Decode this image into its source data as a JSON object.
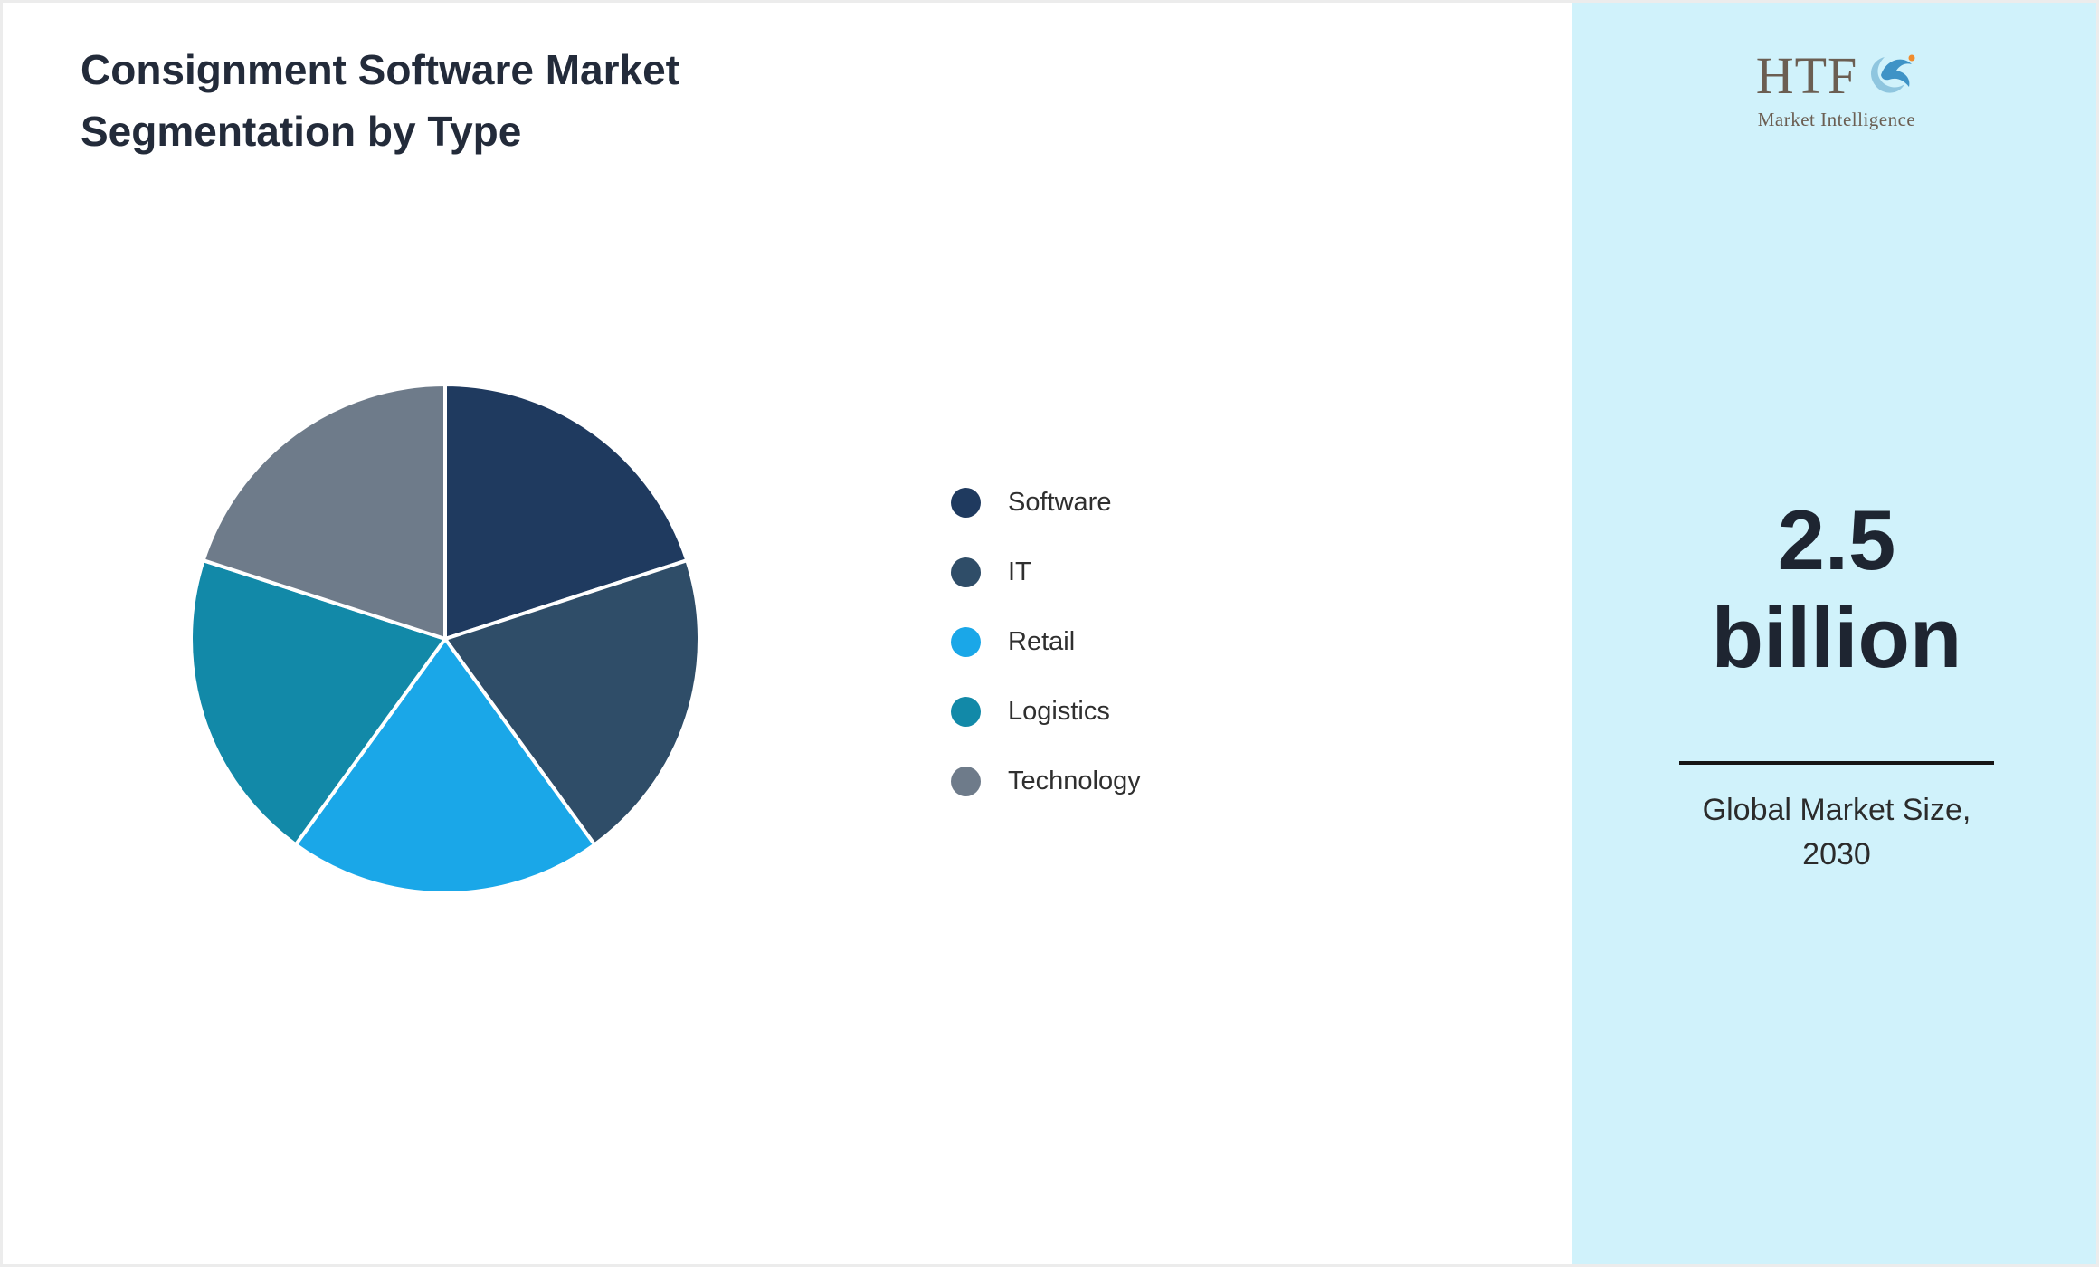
{
  "page": {
    "title_line1": "Consignment Software Market",
    "title_line2": "Segmentation by Type"
  },
  "sidebar": {
    "logo_text": "HTF",
    "logo_subtext": "Market Intelligence",
    "market_size_line1": "2.5",
    "market_size_line2": "billion",
    "caption_line1": "Global Market Size,",
    "caption_line2": "2030",
    "background_color": "#d0f2fb"
  },
  "chart_data": {
    "type": "pie",
    "title": "Consignment Software Market Segmentation by Type",
    "categories": [
      "Software",
      "IT",
      "Retail",
      "Logistics",
      "Technology"
    ],
    "values": [
      20,
      20,
      20,
      20,
      20
    ],
    "colors": [
      "#1F3A5F",
      "#2F4D68",
      "#1AA7E8",
      "#1289A8",
      "#6E7B8A"
    ],
    "legend_position": "right",
    "start_angle_deg": 0,
    "direction": "clockwise",
    "slice_border_color": "#FFFFFF"
  }
}
